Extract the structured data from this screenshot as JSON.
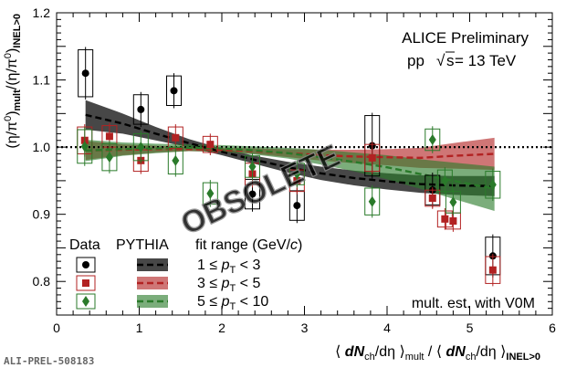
{
  "chart_data": {
    "type": "scatter",
    "xlabel": "⟨ dNch/dη ⟩mult / ⟨ dNch/dη ⟩INEL>0",
    "xlabel_parts": {
      "open": "⟨ ",
      "N1": "dN",
      "ch1": "ch",
      "deta1": "/dη",
      "close1": " ⟩",
      "mult": "mult",
      "slash": " / ",
      "open2": "⟨ ",
      "N2": "dN",
      "ch2": "ch",
      "deta2": "/dη",
      "close2": " ⟩",
      "inel": "INEL>0"
    },
    "ylabel_parts": {
      "a": "(η/π",
      "a0": "0",
      "b": ")",
      "mult": "mult",
      "c": "/(η/π",
      "c0": "0",
      "d": ")",
      "inel": "INEL>0"
    },
    "xlim": [
      0,
      6
    ],
    "ylim": [
      0.75,
      1.2
    ],
    "xticks": [
      "0",
      "1",
      "2",
      "3",
      "4",
      "5",
      "6"
    ],
    "yticks": [
      "0.8",
      "0.9",
      "1.0",
      "1.1",
      "1.2"
    ],
    "reference_line": 1.0,
    "series": [
      {
        "name": "1 ≤ pT < 3",
        "color": "#000000",
        "marker": "circle",
        "points": [
          {
            "x": 0.35,
            "y": 1.11,
            "err": 0.035
          },
          {
            "x": 1.02,
            "y": 1.056,
            "err": 0.022
          },
          {
            "x": 1.42,
            "y": 1.084,
            "err": 0.022
          },
          {
            "x": 2.37,
            "y": 0.93,
            "err": 0.022
          },
          {
            "x": 2.91,
            "y": 0.913,
            "err": 0.022
          },
          {
            "x": 3.82,
            "y": 1.002,
            "err": 0.045
          },
          {
            "x": 4.55,
            "y": 0.936,
            "err": 0.022
          },
          {
            "x": 5.28,
            "y": 0.838,
            "err": 0.028
          }
        ],
        "fit": [
          [
            0.35,
            1.048
          ],
          [
            0.8,
            1.035
          ],
          [
            1.2,
            1.02
          ],
          [
            1.6,
            1.006
          ],
          [
            2.0,
            0.993
          ],
          [
            2.4,
            0.981
          ],
          [
            2.8,
            0.97
          ],
          [
            3.2,
            0.961
          ],
          [
            3.6,
            0.954
          ],
          [
            4.0,
            0.949
          ],
          [
            4.4,
            0.945
          ],
          [
            4.8,
            0.943
          ],
          [
            5.3,
            0.942
          ]
        ],
        "fit_band_half_width": [
          0.022,
          0.015,
          0.01,
          0.006,
          0.005,
          0.006,
          0.008,
          0.01,
          0.011,
          0.012,
          0.013,
          0.014,
          0.015
        ]
      },
      {
        "name": "3 ≤ pT < 5",
        "color": "#b22222",
        "marker": "square",
        "points": [
          {
            "x": 0.34,
            "y": 1.01,
            "err": 0.02
          },
          {
            "x": 0.64,
            "y": 1.016,
            "err": 0.016
          },
          {
            "x": 1.02,
            "y": 0.98,
            "err": 0.016
          },
          {
            "x": 1.44,
            "y": 1.014,
            "err": 0.016
          },
          {
            "x": 1.86,
            "y": 1.004,
            "err": 0.012
          },
          {
            "x": 2.37,
            "y": 0.96,
            "err": 0.016
          },
          {
            "x": 2.91,
            "y": 0.95,
            "err": 0.016
          },
          {
            "x": 3.82,
            "y": 0.984,
            "err": 0.02
          },
          {
            "x": 4.55,
            "y": 0.924,
            "err": 0.012
          },
          {
            "x": 4.7,
            "y": 0.893,
            "err": 0.012
          },
          {
            "x": 4.8,
            "y": 0.89,
            "err": 0.012
          },
          {
            "x": 5.28,
            "y": 0.817,
            "err": 0.02
          }
        ],
        "fit": [
          [
            0.35,
            0.995
          ],
          [
            0.8,
            0.996
          ],
          [
            1.2,
            0.997
          ],
          [
            1.6,
            0.997
          ],
          [
            2.0,
            0.996
          ],
          [
            2.4,
            0.994
          ],
          [
            2.8,
            0.991
          ],
          [
            3.2,
            0.988
          ],
          [
            3.6,
            0.986
          ],
          [
            4.0,
            0.985
          ],
          [
            4.4,
            0.984
          ],
          [
            4.8,
            0.987
          ],
          [
            5.3,
            0.99
          ]
        ],
        "fit_band_half_width": [
          0.014,
          0.008,
          0.005,
          0.003,
          0.003,
          0.004,
          0.006,
          0.008,
          0.01,
          0.012,
          0.015,
          0.019,
          0.024
        ]
      },
      {
        "name": "5 ≤ pT < 10",
        "color": "#2a7a2a",
        "marker": "diamond",
        "points": [
          {
            "x": 0.34,
            "y": 1.001,
            "err": 0.025
          },
          {
            "x": 0.64,
            "y": 0.985,
            "err": 0.02
          },
          {
            "x": 1.02,
            "y": 1.0,
            "err": 0.02
          },
          {
            "x": 1.44,
            "y": 0.98,
            "err": 0.02
          },
          {
            "x": 1.86,
            "y": 0.931,
            "err": 0.016
          },
          {
            "x": 2.37,
            "y": 0.971,
            "err": 0.016
          },
          {
            "x": 2.91,
            "y": 0.96,
            "err": 0.016
          },
          {
            "x": 3.82,
            "y": 0.919,
            "err": 0.02
          },
          {
            "x": 4.55,
            "y": 1.011,
            "err": 0.016
          },
          {
            "x": 4.7,
            "y": 0.95,
            "err": 0.016
          },
          {
            "x": 4.8,
            "y": 0.918,
            "err": 0.016
          },
          {
            "x": 5.28,
            "y": 0.944,
            "err": 0.02
          }
        ],
        "fit": [
          [
            0.35,
            0.995
          ],
          [
            0.8,
            0.997
          ],
          [
            1.2,
            0.998
          ],
          [
            1.6,
            0.999
          ],
          [
            2.0,
            0.998
          ],
          [
            2.4,
            0.995
          ],
          [
            2.8,
            0.991
          ],
          [
            3.2,
            0.985
          ],
          [
            3.6,
            0.978
          ],
          [
            4.0,
            0.97
          ],
          [
            4.4,
            0.96
          ],
          [
            4.8,
            0.95
          ],
          [
            5.3,
            0.938
          ]
        ],
        "fit_band_half_width": [
          0.016,
          0.01,
          0.007,
          0.005,
          0.005,
          0.006,
          0.008,
          0.011,
          0.014,
          0.018,
          0.022,
          0.027,
          0.033
        ]
      }
    ],
    "annotations": {
      "line1": "ALICE Preliminary",
      "line2_pp": "pp",
      "line2_sqrt": "√",
      "line2_s": "s",
      "line2_val": " = 13 TeV",
      "mult_est": "mult. est. with V0M",
      "watermark": "OBSOLETE",
      "fig_id": "ALI-PREL-508183"
    },
    "legend": {
      "data_header": "Data",
      "pythia_header": "PYTHIA",
      "fit_range_header": "fit range (GeV/",
      "fit_range_c": "c",
      "fit_range_close": ")",
      "rows": [
        {
          "lo": "1 ≤ ",
          "p": "p",
          "T": "T",
          "hi": " < 3"
        },
        {
          "lo": "3 ≤ ",
          "p": "p",
          "T": "T",
          "hi": " < 5"
        },
        {
          "lo": "5 ≤ ",
          "p": "p",
          "T": "T",
          "hi": " < 10"
        }
      ]
    }
  }
}
